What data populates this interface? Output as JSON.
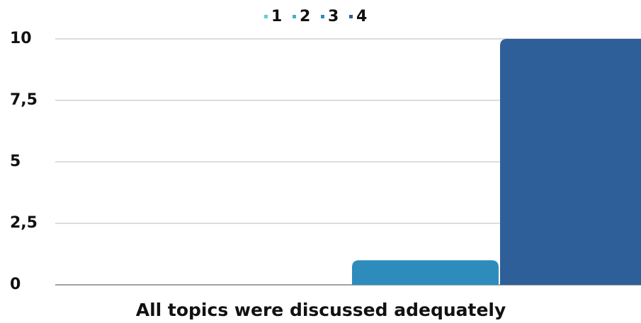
{
  "chart_data": {
    "type": "bar",
    "categories": [
      "All topics were discussed adequately"
    ],
    "series": [
      {
        "name": "1",
        "color": "#5ccfdc",
        "values": [
          0
        ]
      },
      {
        "name": "2",
        "color": "#3fb1d0",
        "values": [
          0
        ]
      },
      {
        "name": "3",
        "color": "#2e8cbd",
        "values": [
          1
        ]
      },
      {
        "name": "4",
        "color": "#2f5f98",
        "values": [
          10
        ]
      }
    ],
    "ylim": [
      0,
      10
    ],
    "yticks": [
      0,
      {
        "value": 2.5,
        "label": "2,5"
      },
      5,
      {
        "value": 7.5,
        "label": "7,5"
      },
      10
    ],
    "grid": true,
    "legend": "top"
  }
}
